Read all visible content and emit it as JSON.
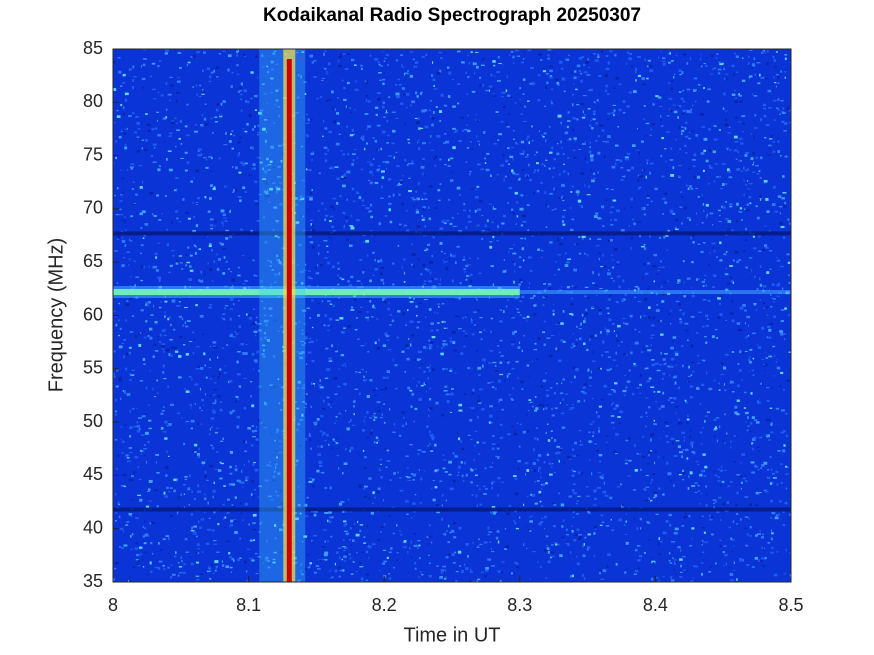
{
  "chart_data": {
    "type": "spectrogram",
    "title": "Kodaikanal Radio Spectrograph  20250307",
    "xlabel": "Time in UT",
    "ylabel": "Frequency (MHz)",
    "xlim": [
      8,
      8.5
    ],
    "xticks": [
      8,
      8.1,
      8.2,
      8.3,
      8.4,
      8.5
    ],
    "ylim": [
      35,
      85
    ],
    "yticks": [
      35,
      40,
      45,
      50,
      55,
      60,
      65,
      70,
      75,
      80,
      85
    ],
    "burst_times": [
      8.13
    ],
    "bright_frequencies": [
      62.2
    ],
    "dark_frequencies": [
      67.7,
      41.8
    ],
    "color": "#0b34d6"
  }
}
